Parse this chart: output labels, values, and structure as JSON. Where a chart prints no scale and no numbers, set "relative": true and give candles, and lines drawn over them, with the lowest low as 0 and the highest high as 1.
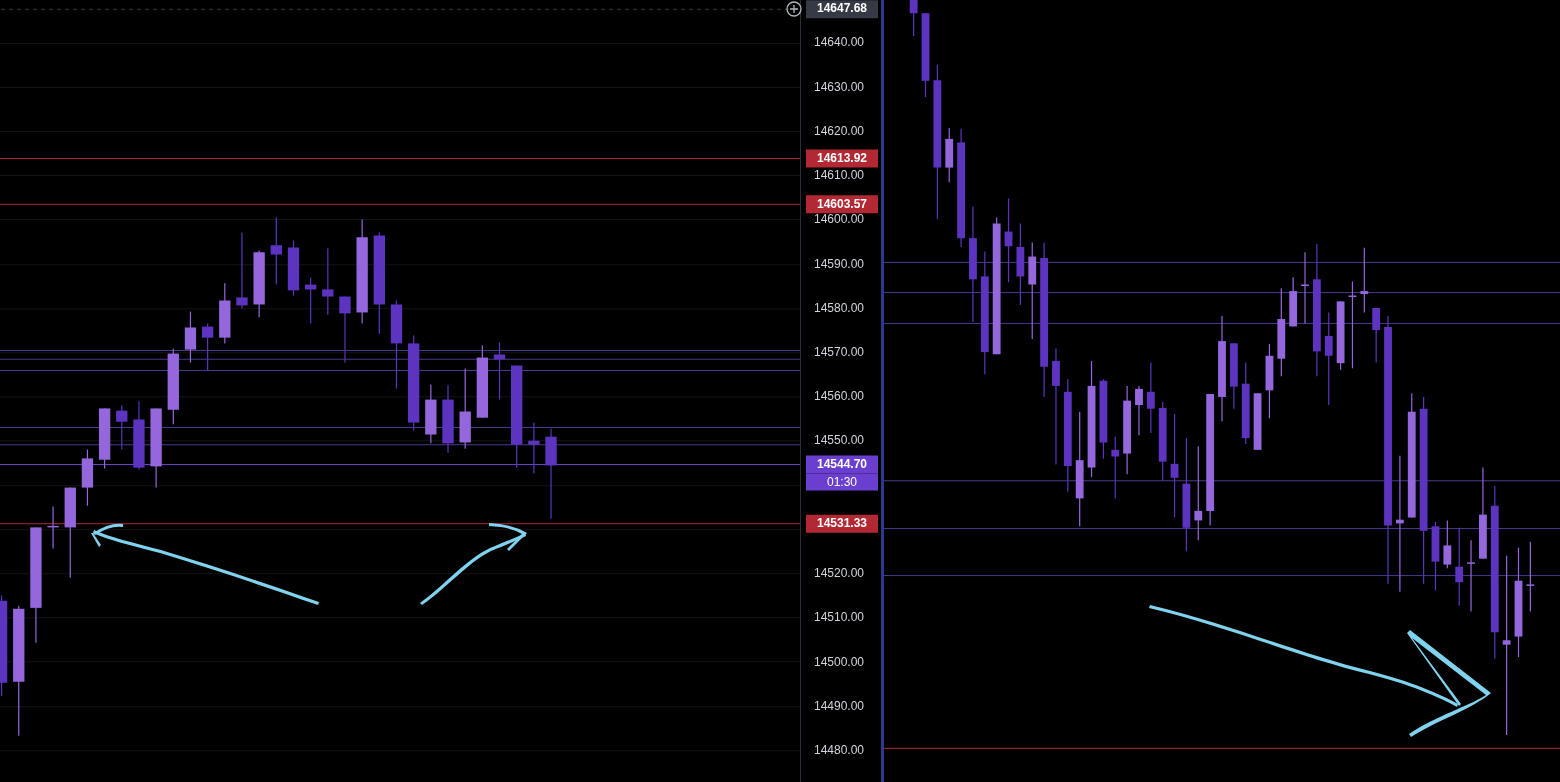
{
  "chart_data": [
    {
      "type": "candlestick",
      "tick_labels": "y",
      "grid": "y",
      "categories": [
        null,
        null,
        null,
        null,
        null,
        null,
        null,
        null,
        null,
        null,
        null,
        null,
        null,
        null,
        null,
        null,
        null,
        null,
        null,
        null,
        null,
        null,
        null,
        null,
        null,
        null,
        null,
        null,
        null,
        null,
        null,
        null,
        null,
        null,
        null,
        null,
        null,
        null,
        null,
        null,
        null,
        null,
        null,
        null,
        null,
        null,
        null
      ],
      "ohlc": [
        [
          14513.9,
          14515.1,
          14492.4,
          14495.4
        ],
        [
          14495.6,
          14512.8,
          14483.4,
          14512.1
        ],
        [
          14512.3,
          14530.5,
          14504.4,
          14530.5
        ],
        [
          14530.5,
          14535.2,
          14525.7,
          14530.5
        ],
        [
          14530.5,
          14539.5,
          14519.1,
          14539.5
        ],
        [
          14539.5,
          14548.1,
          14535.4,
          14546.1
        ],
        [
          14545.8,
          14557.4,
          14543.8,
          14557.4
        ],
        [
          14556.9,
          14558.1,
          14548.1,
          14554.4
        ],
        [
          14554.9,
          14559.0,
          14543.6,
          14544.0
        ],
        [
          14544.3,
          14557.4,
          14539.5,
          14557.4
        ],
        [
          14557.1,
          14570.9,
          14553.8,
          14569.8
        ],
        [
          14570.7,
          14579.3,
          14567.8,
          14575.7
        ],
        [
          14575.9,
          14576.6,
          14566.0,
          14573.4
        ],
        [
          14573.4,
          14585.7,
          14572.1,
          14581.8
        ],
        [
          14582.5,
          14597.2,
          14580.0,
          14580.7
        ],
        [
          14580.9,
          14593.1,
          14578.0,
          14592.7
        ],
        [
          14594.3,
          14600.6,
          14585.4,
          14592.2
        ],
        [
          14593.8,
          14595.4,
          14582.9,
          14584.1
        ],
        [
          14585.4,
          14587.0,
          14576.6,
          14584.3
        ],
        [
          14584.3,
          14593.6,
          14578.6,
          14582.7
        ],
        [
          14582.7,
          14582.7,
          14567.8,
          14578.9
        ],
        [
          14579.1,
          14600.1,
          14576.6,
          14596.1
        ],
        [
          14596.5,
          14597.2,
          14574.3,
          14580.9
        ],
        [
          14580.9,
          14581.8,
          14561.9,
          14572.1
        ],
        [
          14572.1,
          14573.9,
          14552.4,
          14554.2
        ],
        [
          14551.5,
          14562.8,
          14549.5,
          14559.4
        ],
        [
          14559.4,
          14562.6,
          14547.4,
          14549.5
        ],
        [
          14549.7,
          14566.4,
          14548.3,
          14556.7
        ],
        [
          14555.3,
          14571.6,
          14555.3,
          14568.9
        ],
        [
          14569.6,
          14572.3,
          14559.4,
          14568.5
        ],
        [
          14567.1,
          14567.1,
          14544.0,
          14549.2
        ],
        [
          14550.1,
          14554.2,
          14542.7,
          14549.2
        ],
        [
          14551.0,
          14552.8,
          14532.5,
          14544.5
        ],
        null,
        null,
        null,
        null,
        null,
        null,
        null,
        null,
        null,
        null,
        null,
        null,
        null,
        null
      ],
      "colors": [
        "#5c34c0",
        "#9467dc",
        "#9467dc",
        "#9467dc",
        "#9467dc",
        "#9467dc",
        "#9467dc",
        "#5c34c0",
        "#5c34c0",
        "#9467dc",
        "#9467dc",
        "#9467dc",
        "#5c34c0",
        "#9467dc",
        "#5c34c0",
        "#9467dc",
        "#5c34c0",
        "#5c34c0",
        "#5c34c0",
        "#5c34c0",
        "#5c34c0",
        "#9467dc",
        "#5c34c0",
        "#5c34c0",
        "#5c34c0",
        "#9467dc",
        "#5c34c0",
        "#9467dc",
        "#9467dc",
        "#5c34c0",
        "#5c34c0",
        "#5c34c0",
        "#5c34c0",
        null,
        null,
        null,
        null,
        null,
        null,
        null,
        null,
        null,
        null,
        null,
        null,
        null,
        null
      ],
      "ylim": [
        14472.8,
        14649.7
      ],
      "yticks": [
        {
          "value": 14480,
          "label": "14480.00"
        },
        {
          "value": 14490,
          "label": "14490.00"
        },
        {
          "value": 14500,
          "label": "14500.00"
        },
        {
          "value": 14510,
          "label": "14510.00"
        },
        {
          "value": 14520,
          "label": "14520.00"
        },
        {
          "value": 14530,
          "label": null
        },
        {
          "value": 14540,
          "label": null
        },
        {
          "value": 14550,
          "label": "14550.00"
        },
        {
          "value": 14560,
          "label": "14560.00"
        },
        {
          "value": 14570,
          "label": "14570.00"
        },
        {
          "value": 14580,
          "label": "14580.00"
        },
        {
          "value": 14590,
          "label": "14590.00"
        },
        {
          "value": 14600,
          "label": "14600.00"
        },
        {
          "value": 14610,
          "label": "14610.00"
        },
        {
          "value": 14620,
          "label": "14620.00"
        },
        {
          "value": 14630,
          "label": "14630.00"
        },
        {
          "value": 14640,
          "label": "14640.00"
        }
      ],
      "ref_lines": [
        {
          "axis": "y",
          "value": 14647.68,
          "label": "14647.68",
          "color": "#363a45",
          "line_style": "dashed"
        },
        {
          "axis": "y",
          "value": 14613.92,
          "label": "14613.92",
          "color": "#b22833"
        },
        {
          "axis": "y",
          "value": 14603.57,
          "label": "14603.57",
          "color": "#b22833"
        },
        {
          "axis": "y",
          "value": 14531.33,
          "label": "14531.33",
          "color": "#b22833"
        },
        {
          "axis": "y",
          "value": 14570.5,
          "color": "#4a3a8a"
        },
        {
          "axis": "y",
          "value": 14568.5,
          "color": "#4a3a8a"
        },
        {
          "axis": "y",
          "value": 14566.0,
          "color": "#4a3a8a"
        },
        {
          "axis": "y",
          "value": 14553.1,
          "color": "#4a3a8a"
        },
        {
          "axis": "y",
          "value": 14549.2,
          "color": "#4a3a8a"
        },
        {
          "axis": "y",
          "value": 14544.7,
          "label": "14544.70",
          "color": "#6a3fd0"
        }
      ],
      "annotations": [
        "01:30"
      ]
    },
    {
      "type": "candlestick",
      "relative": true,
      "tick_labels": false,
      "categories": [
        null,
        null,
        null,
        null,
        null,
        null,
        null,
        null,
        null,
        null,
        null,
        null,
        null,
        null,
        null,
        null,
        null,
        null,
        null,
        null,
        null,
        null,
        null,
        null,
        null,
        null,
        null,
        null,
        null,
        null,
        null,
        null,
        null,
        null,
        null,
        null,
        null,
        null,
        null,
        null,
        null,
        null,
        null,
        null,
        null,
        null,
        null,
        null,
        null,
        null,
        null,
        null,
        null,
        null,
        null,
        null,
        null
      ],
      "ohlc": [
        null,
        null,
        [
          1.0,
          1.0,
          0.951,
          0.982
        ],
        [
          0.982,
          0.982,
          0.868,
          0.89
        ],
        [
          0.891,
          0.912,
          0.702,
          0.772
        ],
        [
          0.772,
          0.826,
          0.752,
          0.811
        ],
        [
          0.806,
          0.825,
          0.664,
          0.676
        ],
        [
          0.676,
          0.719,
          0.562,
          0.62
        ],
        [
          0.624,
          0.658,
          0.491,
          0.521
        ],
        [
          0.518,
          0.704,
          0.518,
          0.696
        ],
        [
          0.685,
          0.73,
          0.616,
          0.665
        ],
        [
          0.664,
          0.696,
          0.585,
          0.624
        ],
        [
          0.613,
          0.67,
          0.539,
          0.651
        ],
        [
          0.649,
          0.67,
          0.46,
          0.501
        ],
        [
          0.509,
          0.526,
          0.368,
          0.475
        ],
        [
          0.467,
          0.484,
          0.331,
          0.366
        ],
        [
          0.322,
          0.44,
          0.284,
          0.374
        ],
        [
          0.364,
          0.509,
          0.351,
          0.475
        ],
        [
          0.482,
          0.484,
          0.376,
          0.398
        ],
        [
          0.388,
          0.406,
          0.322,
          0.379
        ],
        [
          0.383,
          0.475,
          0.355,
          0.455
        ],
        [
          0.449,
          0.475,
          0.408,
          0.471
        ],
        [
          0.467,
          0.507,
          0.411,
          0.444
        ],
        [
          0.445,
          0.453,
          0.346,
          0.372
        ],
        [
          0.369,
          0.437,
          0.296,
          0.35
        ],
        [
          0.342,
          0.404,
          0.25,
          0.282
        ],
        [
          0.292,
          0.393,
          0.265,
          0.305
        ],
        [
          0.305,
          0.464,
          0.285,
          0.464
        ],
        [
          0.46,
          0.57,
          0.427,
          0.536
        ],
        [
          0.533,
          0.533,
          0.444,
          0.474
        ],
        [
          0.478,
          0.507,
          0.396,
          0.404
        ],
        [
          0.388,
          0.465,
          0.388,
          0.465
        ],
        [
          0.469,
          0.532,
          0.431,
          0.516
        ],
        [
          0.512,
          0.608,
          0.488,
          0.566
        ],
        [
          0.556,
          0.623,
          0.556,
          0.604
        ],
        [
          0.613,
          0.657,
          0.56,
          0.613
        ],
        [
          0.62,
          0.668,
          0.488,
          0.522
        ],
        [
          0.543,
          0.575,
          0.449,
          0.516
        ],
        [
          0.506,
          0.59,
          0.497,
          0.59
        ],
        [
          0.598,
          0.617,
          0.499,
          0.598
        ],
        [
          0.6,
          0.663,
          0.575,
          0.604
        ],
        [
          0.581,
          0.581,
          0.507,
          0.551
        ],
        [
          0.555,
          0.57,
          0.206,
          0.285
        ],
        [
          0.288,
          0.38,
          0.195,
          0.293
        ],
        [
          0.296,
          0.465,
          0.296,
          0.44
        ],
        [
          0.444,
          0.46,
          0.206,
          0.278
        ],
        [
          0.284,
          0.29,
          0.197,
          0.236
        ],
        [
          0.232,
          0.292,
          0.227,
          0.258
        ],
        [
          0.229,
          0.282,
          0.176,
          0.208
        ],
        [
          0.235,
          0.265,
          0.168,
          0.235
        ],
        [
          0.24,
          0.364,
          0.24,
          0.3
        ],
        [
          0.312,
          0.339,
          0.104,
          0.14
        ],
        [
          0.123,
          0.244,
          0,
          0.129
        ],
        [
          0.134,
          0.255,
          0.106,
          0.21
        ],
        [
          0.205,
          0.263,
          0.168,
          0.205
        ],
        null,
        null
      ],
      "colors": [
        null,
        null,
        "#5c34c0",
        "#5c34c0",
        "#5c34c0",
        "#9467dc",
        "#5c34c0",
        "#5c34c0",
        "#5c34c0",
        "#9467dc",
        "#5c34c0",
        "#5c34c0",
        "#9467dc",
        "#5c34c0",
        "#5c34c0",
        "#5c34c0",
        "#9467dc",
        "#9467dc",
        "#5c34c0",
        "#5c34c0",
        "#9467dc",
        "#9467dc",
        "#5c34c0",
        "#5c34c0",
        "#5c34c0",
        "#5c34c0",
        "#9467dc",
        "#9467dc",
        "#9467dc",
        "#5c34c0",
        "#5c34c0",
        "#9467dc",
        "#9467dc",
        "#9467dc",
        "#9467dc",
        "#9467dc",
        "#5c34c0",
        "#5c34c0",
        "#9467dc",
        "#9467dc",
        "#9467dc",
        "#5c34c0",
        "#5c34c0",
        "#9467dc",
        "#9467dc",
        "#5c34c0",
        "#5c34c0",
        "#9467dc",
        "#5c34c0",
        "#9467dc",
        "#9467dc",
        "#5c34c0",
        "#9467dc",
        "#9467dc",
        "#9467dc",
        null,
        null
      ],
      "ref_lines": [
        {
          "axis": "y",
          "value": 0.643,
          "color": "#4a3a8a"
        },
        {
          "axis": "y",
          "value": 0.602,
          "color": "#4a3a8a"
        },
        {
          "axis": "y",
          "value": 0.56,
          "color": "#4a3a8a"
        },
        {
          "axis": "y",
          "value": 0.346,
          "color": "#4a3a8a"
        },
        {
          "axis": "y",
          "value": 0.281,
          "color": "#4a3a8a"
        },
        {
          "axis": "y",
          "value": 0.217,
          "color": "#4a3a8a"
        },
        {
          "axis": "y",
          "value": -0.018,
          "color": "#b22833"
        }
      ]
    }
  ]
}
